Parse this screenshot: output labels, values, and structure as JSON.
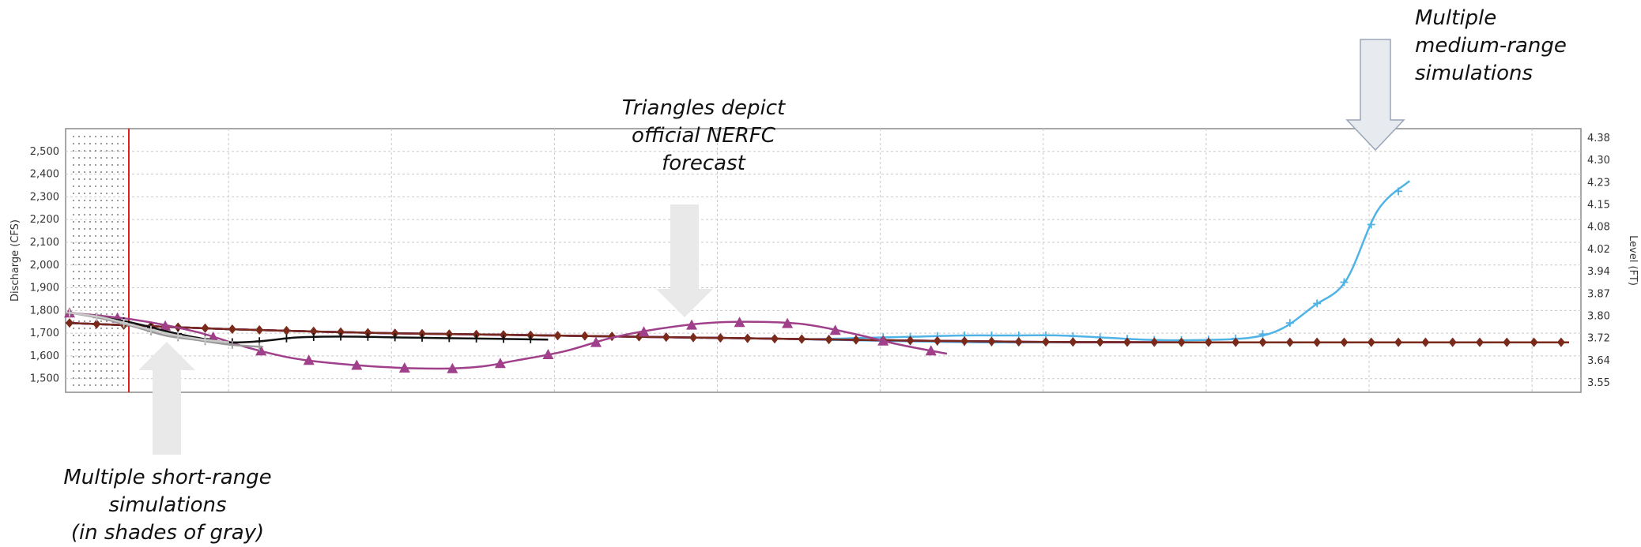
{
  "chart_data": {
    "type": "line",
    "title": "",
    "ylabel": "Discharge (CFS)",
    "y2label": "Level (FT)",
    "ylim": [
      1440,
      2600
    ],
    "yticks": [
      "2,500",
      "2,400",
      "2,300",
      "2,200",
      "2,100",
      "2,000",
      "1,900",
      "1,800",
      "1,700",
      "1,600",
      "1,500"
    ],
    "y2ticks": [
      "4.38",
      "4.30",
      "4.23",
      "4.15",
      "4.08",
      "4.02",
      "3.94",
      "3.87",
      "3.80",
      "3.72",
      "3.64",
      "3.55"
    ],
    "grid": true,
    "x_index_max": 94,
    "forecast_start_index": 4,
    "series": [
      {
        "role": "medium-range-light-blue",
        "color": "#4fb3e6",
        "marker": "plus",
        "x": [
          0,
          10,
          20,
          30,
          40,
          44,
          47,
          50,
          53,
          57,
          62,
          67,
          72,
          77,
          80,
          82,
          84,
          86,
          88,
          90,
          92,
          94
        ],
        "values": [
          1745,
          1718,
          1700,
          1690,
          1680,
          1676,
          1672,
          1668,
          1664,
          1660,
          1660,
          1660,
          1660,
          1660,
          1660,
          1660,
          1660,
          1660,
          1660,
          1660,
          1660,
          1660
        ]
      },
      {
        "role": "medium-range-light-blue",
        "color": "#4fb3e6",
        "marker": "plus",
        "x": [
          0,
          10,
          20,
          30,
          40,
          44,
          47,
          50,
          53,
          56,
          59,
          62,
          65,
          68,
          71,
          74,
          76,
          78,
          80,
          82,
          84
        ],
        "values": [
          1745,
          1718,
          1700,
          1690,
          1680,
          1676,
          1674,
          1680,
          1685,
          1690,
          1690,
          1690,
          1680,
          1670,
          1670,
          1680,
          1720,
          1820,
          1930,
          2240,
          2370
        ]
      },
      {
        "role": "medium-range-magenta",
        "color": "#e03ae0",
        "marker": "plus",
        "x": [
          0,
          10,
          20,
          30,
          40,
          50,
          60,
          70,
          74,
          76,
          78,
          80,
          82,
          84,
          86,
          88,
          90,
          92,
          94
        ],
        "values": [
          1745,
          1718,
          1700,
          1690,
          1680,
          1670,
          1662,
          1660,
          1660,
          1660,
          1660,
          1660,
          1660,
          1660,
          1660,
          1660,
          1660,
          1660,
          1660
        ]
      },
      {
        "role": "medium-range-red",
        "color": "#e02020",
        "marker": "plus",
        "x": [
          0,
          10,
          20,
          30,
          40,
          50,
          60,
          70,
          74,
          76,
          78,
          80,
          82,
          84,
          86,
          88,
          90,
          92,
          94
        ],
        "values": [
          1745,
          1718,
          1700,
          1690,
          1680,
          1670,
          1662,
          1660,
          1660,
          1660,
          1660,
          1660,
          1660,
          1660,
          1660,
          1660,
          1660,
          1660,
          1660
        ]
      },
      {
        "role": "medium-range-blue",
        "color": "#1a1ad6",
        "marker": "plus",
        "x": [
          0,
          10,
          20,
          30,
          40,
          50,
          60,
          70,
          74,
          76,
          78,
          80,
          82,
          84,
          86,
          88,
          90,
          92,
          94
        ],
        "values": [
          1745,
          1718,
          1700,
          1690,
          1680,
          1670,
          1662,
          1660,
          1660,
          1660,
          1660,
          1660,
          1660,
          1660,
          1660,
          1660,
          1660,
          1660,
          1660
        ]
      },
      {
        "role": "medium-range-darkred",
        "color": "#7a2a1a",
        "marker": "diamond",
        "x": [
          0,
          10,
          20,
          30,
          40,
          50,
          60,
          70,
          74,
          76,
          78,
          80,
          82,
          84,
          86,
          88,
          90,
          92,
          94
        ],
        "values": [
          1745,
          1718,
          1700,
          1690,
          1680,
          1670,
          1662,
          1660,
          1660,
          1660,
          1660,
          1660,
          1660,
          1660,
          1660,
          1660,
          1660,
          1660,
          1660
        ]
      },
      {
        "role": "official-forecast",
        "color": "#a0408a",
        "marker": "triangle",
        "x": [
          0,
          4,
          8,
          11,
          14,
          17,
          20,
          22,
          24,
          26,
          28,
          31,
          34,
          37,
          40,
          43,
          46,
          49,
          52,
          55
        ],
        "values": [
          1790,
          1760,
          1705,
          1640,
          1590,
          1565,
          1550,
          1545,
          1545,
          1555,
          1580,
          1620,
          1680,
          1720,
          1745,
          1750,
          1740,
          1700,
          1650,
          1610
        ]
      },
      {
        "role": "short-range-black",
        "color": "#111111",
        "marker": "plus",
        "x": [
          0,
          2,
          4,
          6,
          8,
          10,
          12,
          14,
          16,
          18,
          20,
          22,
          24,
          26,
          28,
          30
        ],
        "values": [
          1790,
          1770,
          1745,
          1710,
          1680,
          1660,
          1665,
          1680,
          1685,
          1685,
          1682,
          1680,
          1678,
          1676,
          1674,
          1672
        ]
      },
      {
        "role": "short-range-gray",
        "color": "#9a9a9a",
        "marker": "plus",
        "x": [
          0,
          2,
          4,
          6,
          8,
          10,
          12
        ],
        "values": [
          1790,
          1765,
          1730,
          1690,
          1670,
          1650,
          1640
        ]
      },
      {
        "role": "short-range-gray-light",
        "color": "#c8c8c8",
        "marker": "plus",
        "x": [
          0,
          2,
          4,
          6,
          8,
          10
        ],
        "values": [
          1790,
          1770,
          1735,
          1700,
          1675,
          1660
        ]
      }
    ]
  },
  "annotations": {
    "nerfc": "Triangles depict\nofficial NERFC\nforecast",
    "medium": "Multiple\nmedium-range\nsimulations",
    "short": "Multiple short-range\nsimulations\n(in shades of gray)"
  }
}
